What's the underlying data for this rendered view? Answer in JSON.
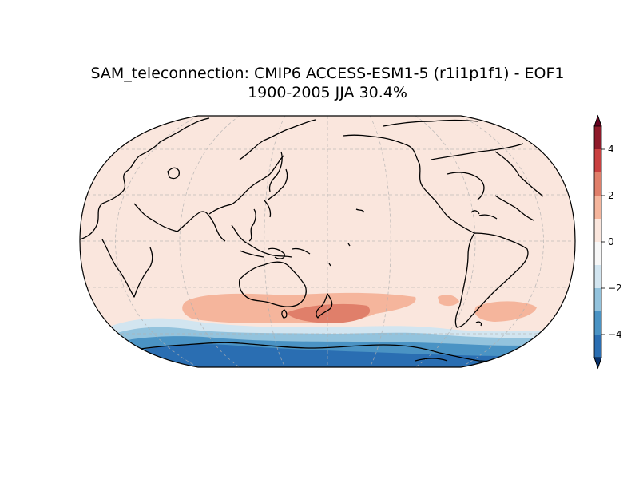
{
  "figure": {
    "title_line1": "SAM_teleconnection: CMIP6 ACCESS-ESM1-5 (r1i1p1f1) - EOF1",
    "title_line2": "1900-2005 JJA 30.4%",
    "projection": "Robinson",
    "central_longitude": 180,
    "gridlines": true,
    "coastlines": true
  },
  "colorbar": {
    "orientation": "vertical",
    "placement": "right",
    "extend": "both",
    "levels": [
      -5,
      -4,
      -3,
      -2,
      -1,
      0,
      1,
      2,
      3,
      4,
      5
    ],
    "ticks": [
      "4",
      "2",
      "0",
      "−2",
      "−4"
    ],
    "tick_values": [
      4,
      2,
      0,
      -2,
      -4
    ],
    "colors": [
      "#08306b",
      "#2166ac",
      "#4393c3",
      "#92c5de",
      "#d1e5f0",
      "#f7f7f7",
      "#fddbc7",
      "#f4a582",
      "#d6604d",
      "#b2182b",
      "#67001f"
    ],
    "band_colors": [
      "#2a6eb2",
      "#4a93c4",
      "#93c3dd",
      "#d2e5f0",
      "#f7f7f7",
      "#fae6dd",
      "#f5b59c",
      "#e07f6a",
      "#c94040",
      "#8f1a2a"
    ]
  },
  "map_fields": {
    "background_level": "0 to 1",
    "features": [
      {
        "region": "Southern Ocean south of Australia / New Zealand",
        "level": "1 to 2"
      },
      {
        "region": "East of New Zealand",
        "level": "2 to 3"
      },
      {
        "region": "South Atlantic east of South America",
        "level": "1 to 2"
      },
      {
        "region": "Antarctic margin",
        "level": "-1 to 0"
      },
      {
        "region": "Antarctica",
        "level": "-4 to -3"
      }
    ]
  }
}
